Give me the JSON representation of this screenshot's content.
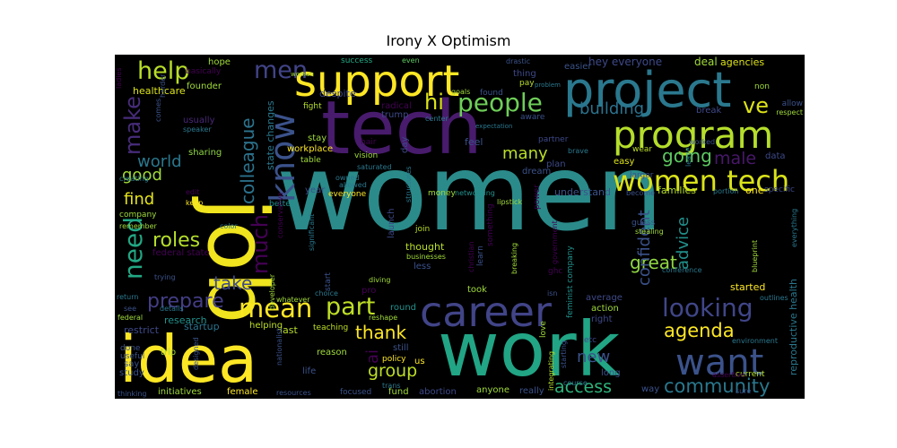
{
  "chart_data": {
    "type": "wordcloud",
    "title": "Irony X Optimism",
    "background": "#000000",
    "palette": "viridis",
    "words": [
      {
        "text": "women",
        "weight": 100,
        "color": "#2a8b8a"
      },
      {
        "text": "work",
        "weight": 72,
        "color": "#21a585"
      },
      {
        "text": "job",
        "weight": 70,
        "color": "#f0e51e"
      },
      {
        "text": "tech",
        "weight": 68,
        "color": "#481b6d"
      },
      {
        "text": "idea",
        "weight": 62,
        "color": "#fde725"
      },
      {
        "text": "support",
        "weight": 50,
        "color": "#fde725"
      },
      {
        "text": "project",
        "weight": 48,
        "color": "#2a788e"
      },
      {
        "text": "program",
        "weight": 42,
        "color": "#b5de2b"
      },
      {
        "text": "career",
        "weight": 40,
        "color": "#414487"
      },
      {
        "text": "want",
        "weight": 36,
        "color": "#3b528b"
      },
      {
        "text": "know",
        "weight": 34,
        "color": "#3b528b"
      },
      {
        "text": "women tech",
        "weight": 30,
        "color": "#dae319"
      },
      {
        "text": "people",
        "weight": 28,
        "color": "#6ece58"
      },
      {
        "text": "mean",
        "weight": 27,
        "color": "#fde725"
      },
      {
        "text": "looking",
        "weight": 26,
        "color": "#404688"
      },
      {
        "text": "need",
        "weight": 26,
        "color": "#22a884"
      },
      {
        "text": "part",
        "weight": 25,
        "color": "#bddf26"
      },
      {
        "text": "help",
        "weight": 25,
        "color": "#b8de29"
      },
      {
        "text": "men",
        "weight": 24,
        "color": "#414487"
      },
      {
        "text": "much",
        "weight": 22,
        "color": "#440154"
      },
      {
        "text": "make",
        "weight": 22,
        "color": "#472c7a"
      },
      {
        "text": "ve",
        "weight": 22,
        "color": "#dde318"
      },
      {
        "text": "hi",
        "weight": 22,
        "color": "#dae319"
      },
      {
        "text": "prepare",
        "weight": 21,
        "color": "#433e85"
      },
      {
        "text": "colleague",
        "weight": 20,
        "color": "#2c738e"
      },
      {
        "text": "community",
        "weight": 20,
        "color": "#2a788e"
      },
      {
        "text": "roles",
        "weight": 20,
        "color": "#b5de2b"
      },
      {
        "text": "agenda",
        "weight": 20,
        "color": "#fde725"
      },
      {
        "text": "take",
        "weight": 19,
        "color": "#3e4a89"
      },
      {
        "text": "going",
        "weight": 19,
        "color": "#5ec962"
      },
      {
        "text": "thank",
        "weight": 19,
        "color": "#fde725"
      },
      {
        "text": "great",
        "weight": 19,
        "color": "#90d743"
      },
      {
        "text": "group",
        "weight": 18,
        "color": "#bddf26"
      },
      {
        "text": "access",
        "weight": 18,
        "color": "#2fb47c"
      },
      {
        "text": "male",
        "weight": 18,
        "color": "#48186a"
      },
      {
        "text": "building",
        "weight": 17,
        "color": "#2c728e"
      },
      {
        "text": "confident",
        "weight": 17,
        "color": "#3b528b"
      },
      {
        "text": "advice",
        "weight": 17,
        "color": "#21918c"
      },
      {
        "text": "new",
        "weight": 17,
        "color": "#3b528b"
      },
      {
        "text": "world",
        "weight": 16,
        "color": "#2a788e"
      },
      {
        "text": "good",
        "weight": 16,
        "color": "#a0da39"
      },
      {
        "text": "find",
        "weight": 16,
        "color": "#e5e419"
      },
      {
        "text": "many",
        "weight": 16,
        "color": "#b8de29"
      },
      {
        "text": "ai",
        "weight": 16,
        "color": "#440154"
      },
      {
        "text": "hey everyone",
        "weight": 11,
        "color": "#3e4989"
      },
      {
        "text": "deal",
        "weight": 10,
        "color": "#a0da39"
      },
      {
        "text": "agencies",
        "weight": 10,
        "color": "#dde318"
      },
      {
        "text": "everyone",
        "weight": 9,
        "color": "#fde725"
      },
      {
        "text": "state changes",
        "weight": 9,
        "color": "#2a788e"
      },
      {
        "text": "stay",
        "weight": 9,
        "color": "#a0da39"
      },
      {
        "text": "reproductive health",
        "weight": 9,
        "color": "#2a788e"
      },
      {
        "text": "research",
        "weight": 10,
        "color": "#21918c"
      },
      {
        "text": "restrict",
        "weight": 10,
        "color": "#3e4989"
      },
      {
        "text": "startup",
        "weight": 10,
        "color": "#2c738e"
      },
      {
        "text": "last",
        "weight": 10,
        "color": "#b8de29"
      },
      {
        "text": "helping",
        "weight": 9,
        "color": "#bddf26"
      },
      {
        "text": "federal state",
        "weight": 9,
        "color": "#440154"
      },
      {
        "text": "company",
        "weight": 8,
        "color": "#a0da39"
      },
      {
        "text": "healthcare",
        "weight": 10,
        "color": "#dde318"
      },
      {
        "text": "founder",
        "weight": 9,
        "color": "#a0da39"
      },
      {
        "text": "hope",
        "weight": 9,
        "color": "#a0da39"
      },
      {
        "text": "basically",
        "weight": 8,
        "color": "#440154"
      },
      {
        "text": "usually",
        "weight": 9,
        "color": "#482878"
      },
      {
        "text": "speaker",
        "weight": 7,
        "color": "#2a788e"
      },
      {
        "text": "sharing",
        "weight": 9,
        "color": "#90d743"
      },
      {
        "text": "despite",
        "weight": 10,
        "color": "#3e4989"
      },
      {
        "text": "workplace",
        "weight": 9,
        "color": "#fde725"
      },
      {
        "text": "table",
        "weight": 8,
        "color": "#a0da39"
      },
      {
        "text": "fight",
        "weight": 8,
        "color": "#b5de2b"
      },
      {
        "text": "radical",
        "weight": 9,
        "color": "#440154"
      },
      {
        "text": "trump",
        "weight": 9,
        "color": "#3e4989"
      },
      {
        "text": "hair",
        "weight": 8,
        "color": "#440154"
      },
      {
        "text": "vision",
        "weight": 8,
        "color": "#a0da39"
      },
      {
        "text": "saturated",
        "weight": 7,
        "color": "#2a788e"
      },
      {
        "text": "success",
        "weight": 8,
        "color": "#22a884"
      },
      {
        "text": "even",
        "weight": 7,
        "color": "#5ec962"
      },
      {
        "text": "drastic",
        "weight": 7,
        "color": "#3b528b"
      },
      {
        "text": "thing",
        "weight": 9,
        "color": "#3e4989"
      },
      {
        "text": "easier",
        "weight": 9,
        "color": "#3b528b"
      },
      {
        "text": "pay",
        "weight": 8,
        "color": "#b8de29"
      },
      {
        "text": "problem",
        "weight": 7,
        "color": "#2a788e"
      },
      {
        "text": "goals",
        "weight": 7,
        "color": "#a0da39"
      },
      {
        "text": "found",
        "weight": 8,
        "color": "#3b528b"
      },
      {
        "text": "aware",
        "weight": 8,
        "color": "#3b528b"
      },
      {
        "text": "center",
        "weight": 7,
        "color": "#2a788e"
      },
      {
        "text": "expectation",
        "weight": 7,
        "color": "#2a788e"
      },
      {
        "text": "non",
        "weight": 8,
        "color": "#a0da39"
      },
      {
        "text": "allow",
        "weight": 8,
        "color": "#3b528b"
      },
      {
        "text": "respect",
        "weight": 7,
        "color": "#a0da39"
      },
      {
        "text": "break",
        "weight": 9,
        "color": "#3e4989"
      },
      {
        "text": "partner",
        "weight": 8,
        "color": "#3e4989"
      },
      {
        "text": "brave",
        "weight": 7,
        "color": "#2a788e"
      },
      {
        "text": "plan",
        "weight": 9,
        "color": "#3e4989"
      },
      {
        "text": "easy",
        "weight": 9,
        "color": "#dde318"
      },
      {
        "text": "wear",
        "weight": 8,
        "color": "#bddf26"
      },
      {
        "text": "larger",
        "weight": 8,
        "color": "#3b528b"
      },
      {
        "text": "worked",
        "weight": 7,
        "color": "#3b528b"
      },
      {
        "text": "leave",
        "weight": 7,
        "color": "#2a788e"
      },
      {
        "text": "data",
        "weight": 9,
        "color": "#3e4989"
      },
      {
        "text": "portion",
        "weight": 7,
        "color": "#2a788e"
      },
      {
        "text": "one",
        "weight": 10,
        "color": "#fde725"
      },
      {
        "text": "specific",
        "weight": 8,
        "color": "#3e4989"
      },
      {
        "text": "everything",
        "weight": 7,
        "color": "#2a788e"
      },
      {
        "text": "families",
        "weight": 10,
        "color": "#b5de2b"
      },
      {
        "text": "become",
        "weight": 7,
        "color": "#3b528b"
      },
      {
        "text": "understand",
        "weight": 10,
        "color": "#3b528b"
      },
      {
        "text": "power",
        "weight": 8,
        "color": "#440154"
      },
      {
        "text": "dream",
        "weight": 9,
        "color": "#3b528b"
      },
      {
        "text": "feel",
        "weight": 10,
        "color": "#3b528b"
      },
      {
        "text": "lipstick",
        "weight": 7,
        "color": "#a0da39"
      },
      {
        "text": "networking",
        "weight": 7,
        "color": "#21918c"
      },
      {
        "text": "money",
        "weight": 8,
        "color": "#a0da39"
      },
      {
        "text": "owned",
        "weight": 7,
        "color": "#2a788e"
      },
      {
        "text": "allowed",
        "weight": 7,
        "color": "#2a788e"
      },
      {
        "text": "launch",
        "weight": 9,
        "color": "#3e4989"
      },
      {
        "text": "day",
        "weight": 9,
        "color": "#3e4989"
      },
      {
        "text": "structures",
        "weight": 7,
        "color": "#2a788e"
      },
      {
        "text": "something",
        "weight": 8,
        "color": "#440154"
      },
      {
        "text": "year",
        "weight": 9,
        "color": "#3b528b"
      },
      {
        "text": "better",
        "weight": 8,
        "color": "#21918c"
      },
      {
        "text": "significant",
        "weight": 7,
        "color": "#2a788e"
      },
      {
        "text": "join",
        "weight": 8,
        "color": "#b8de29"
      },
      {
        "text": "thought",
        "weight": 10,
        "color": "#b8de29"
      },
      {
        "text": "less",
        "weight": 9,
        "color": "#3b528b"
      },
      {
        "text": "businesses",
        "weight": 7,
        "color": "#a0da39"
      },
      {
        "text": "christian",
        "weight": 7,
        "color": "#440154"
      },
      {
        "text": "learn",
        "weight": 8,
        "color": "#3b528b"
      },
      {
        "text": "breaking",
        "weight": 7,
        "color": "#a0da39"
      },
      {
        "text": "feminist company",
        "weight": 8,
        "color": "#21918c"
      },
      {
        "text": "government",
        "weight": 7,
        "color": "#440154"
      },
      {
        "text": "guess",
        "weight": 8,
        "color": "#3b528b"
      },
      {
        "text": "stealing",
        "weight": 7,
        "color": "#a0da39"
      },
      {
        "text": "conference",
        "weight": 7,
        "color": "#2a788e"
      },
      {
        "text": "blueprint",
        "weight": 7,
        "color": "#a0da39"
      },
      {
        "text": "started",
        "weight": 10,
        "color": "#fde725"
      },
      {
        "text": "outlines",
        "weight": 7,
        "color": "#2a788e"
      },
      {
        "text": "average",
        "weight": 9,
        "color": "#3e4989"
      },
      {
        "text": "action",
        "weight": 9,
        "color": "#a0da39"
      },
      {
        "text": "right",
        "weight": 9,
        "color": "#3e4989"
      },
      {
        "text": "etc",
        "weight": 8,
        "color": "#3e4989"
      },
      {
        "text": "love",
        "weight": 8,
        "color": "#a0da39"
      },
      {
        "text": "ghc",
        "weight": 8,
        "color": "#440154"
      },
      {
        "text": "isn",
        "weight": 7,
        "color": "#3b528b"
      },
      {
        "text": "took",
        "weight": 9,
        "color": "#a0da39"
      },
      {
        "text": "pro",
        "weight": 9,
        "color": "#440154"
      },
      {
        "text": "round",
        "weight": 9,
        "color": "#21918c"
      },
      {
        "text": "reshape",
        "weight": 7,
        "color": "#a0da39"
      },
      {
        "text": "teaching",
        "weight": 8,
        "color": "#bddf26"
      },
      {
        "text": "reason",
        "weight": 9,
        "color": "#a0da39"
      },
      {
        "text": "policy",
        "weight": 8,
        "color": "#fde725"
      },
      {
        "text": "still",
        "weight": 9,
        "color": "#3b528b"
      },
      {
        "text": "us",
        "weight": 9,
        "color": "#fde725"
      },
      {
        "text": "fund",
        "weight": 9,
        "color": "#a0da39"
      },
      {
        "text": "abortion",
        "weight": 9,
        "color": "#3e4989"
      },
      {
        "text": "anyone",
        "weight": 9,
        "color": "#a0da39"
      },
      {
        "text": "really",
        "weight": 9,
        "color": "#3b528b"
      },
      {
        "text": "course",
        "weight": 7,
        "color": "#2a788e"
      },
      {
        "text": "starting",
        "weight": 7,
        "color": "#3b528b"
      },
      {
        "text": "integrating",
        "weight": 7,
        "color": "#b5de2b"
      },
      {
        "text": "long",
        "weight": 9,
        "color": "#3b528b"
      },
      {
        "text": "way",
        "weight": 9,
        "color": "#3b528b"
      },
      {
        "text": "current",
        "weight": 8,
        "color": "#b5de2b"
      },
      {
        "text": "environment",
        "weight": 7,
        "color": "#2a788e"
      },
      {
        "text": "assertive",
        "weight": 7,
        "color": "#440154"
      },
      {
        "text": "sure",
        "weight": 7,
        "color": "#3b528b"
      },
      {
        "text": "life",
        "weight": 9,
        "color": "#3b528b"
      },
      {
        "text": "trip",
        "weight": 8,
        "color": "#a0da39"
      },
      {
        "text": "designed",
        "weight": 7,
        "color": "#3b528b"
      },
      {
        "text": "initiatives",
        "weight": 9,
        "color": "#a0da39"
      },
      {
        "text": "female",
        "weight": 9,
        "color": "#fde725"
      },
      {
        "text": "resources",
        "weight": 7,
        "color": "#3b528b"
      },
      {
        "text": "focused",
        "weight": 8,
        "color": "#3b528b"
      },
      {
        "text": "trans",
        "weight": 7,
        "color": "#2a788e"
      },
      {
        "text": "thinking",
        "weight": 7,
        "color": "#3b528b"
      },
      {
        "text": "study",
        "weight": 9,
        "color": "#3b528b"
      },
      {
        "text": "say",
        "weight": 9,
        "color": "#3b528b"
      },
      {
        "text": "useful",
        "weight": 8,
        "color": "#3b528b"
      },
      {
        "text": "done",
        "weight": 8,
        "color": "#3b528b"
      },
      {
        "text": "federal",
        "weight": 7,
        "color": "#a0da39"
      },
      {
        "text": "see",
        "weight": 7,
        "color": "#3b528b"
      },
      {
        "text": "return",
        "weight": 7,
        "color": "#2a788e"
      },
      {
        "text": "details",
        "weight": 7,
        "color": "#2a788e"
      },
      {
        "text": "trying",
        "weight": 7,
        "color": "#3b528b"
      },
      {
        "text": "remember",
        "weight": 7,
        "color": "#a0da39"
      },
      {
        "text": "color",
        "weight": 7,
        "color": "#2a788e"
      },
      {
        "text": "keep",
        "weight": 7,
        "color": "#fde725"
      },
      {
        "text": "edit",
        "weight": 7,
        "color": "#440154"
      },
      {
        "text": "creating",
        "weight": 7,
        "color": "#2a788e"
      },
      {
        "text": "developer",
        "weight": 7,
        "color": "#a0da39"
      },
      {
        "text": "start",
        "weight": 8,
        "color": "#3b528b"
      },
      {
        "text": "whatever",
        "weight": 7,
        "color": "#a0da39"
      },
      {
        "text": "choice",
        "weight": 7,
        "color": "#2a788e"
      },
      {
        "text": "diving",
        "weight": 7,
        "color": "#a0da39"
      },
      {
        "text": "nationalist",
        "weight": 7,
        "color": "#3b528b"
      },
      {
        "text": "conservative",
        "weight": 7,
        "color": "#440154"
      },
      {
        "text": "ladies",
        "weight": 7,
        "color": "#440154"
      },
      {
        "text": "harder",
        "weight": 7,
        "color": "#3b528b"
      },
      {
        "text": "comes",
        "weight": 7,
        "color": "#3b528b"
      },
      {
        "text": "woman",
        "weight": 7,
        "color": "#a0da39"
      }
    ]
  }
}
